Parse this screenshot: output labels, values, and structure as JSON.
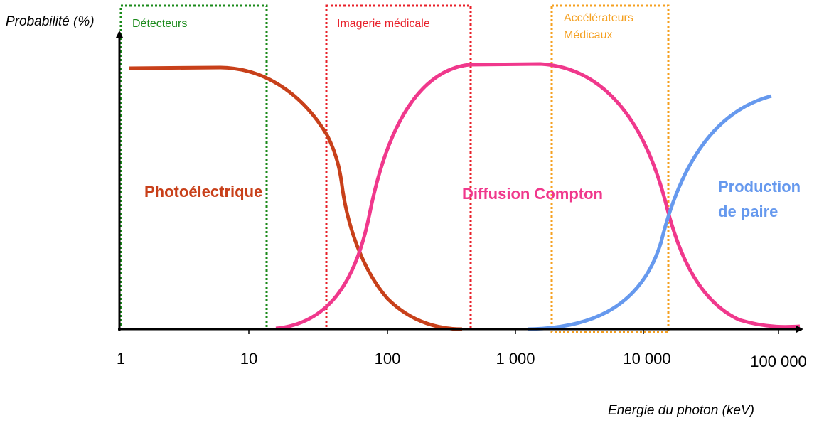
{
  "axes": {
    "y_label": "Probabilité (%)",
    "x_label": "Energie du photon (keV)",
    "x_ticks": [
      "1",
      "10",
      "100",
      "1 000",
      "10 000",
      "100 000"
    ]
  },
  "zones": [
    {
      "label": "Détecteurs"
    },
    {
      "label": "Imagerie médicale"
    },
    {
      "label": [
        "Accélérateurs",
        "Médicaux"
      ]
    }
  ],
  "curves": [
    {
      "label": "Photoélectrique"
    },
    {
      "label": "Diffusion Compton"
    },
    {
      "label": [
        "Production",
        "de paire"
      ]
    }
  ]
}
